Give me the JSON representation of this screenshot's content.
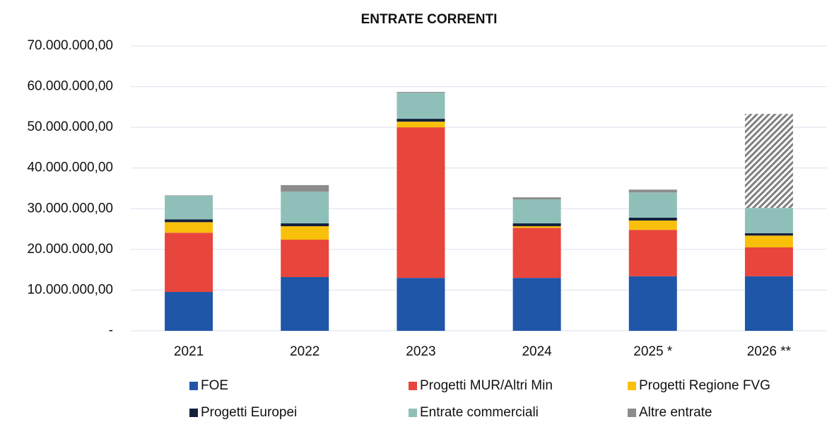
{
  "chart_data": {
    "type": "stacked_bar",
    "title": "ENTRATE CORRENTI",
    "categories": [
      "2021",
      "2022",
      "2023",
      "2024",
      "2025 *",
      "2026 **"
    ],
    "series": [
      {
        "name": "FOE",
        "color": "#1f56a8",
        "values": [
          9550000,
          13200000,
          13000000,
          13000000,
          13400000,
          13400000
        ]
      },
      {
        "name": "Progetti MUR/Altri Min",
        "color": "#e8453c",
        "values": [
          14550000,
          9200000,
          37000000,
          12300000,
          11400000,
          7100000
        ]
      },
      {
        "name": "Progetti Regione FVG",
        "color": "#f9c00b",
        "values": [
          2600000,
          3300000,
          1400000,
          400000,
          2300000,
          2900000
        ]
      },
      {
        "name": "Progetti Europei",
        "color": "#14213d",
        "values": [
          700000,
          700000,
          700000,
          700000,
          700000,
          600000
        ]
      },
      {
        "name": "Entrate commerciali",
        "color": "#8fbfb9",
        "values": [
          5800000,
          7800000,
          6400000,
          5900000,
          6200000,
          6200000
        ]
      },
      {
        "name": "Altre entrate",
        "color": "#8c8c8c",
        "values": [
          100000,
          1600000,
          200000,
          500000,
          700000,
          23100000
        ],
        "patterns": [
          null,
          null,
          null,
          null,
          null,
          "hatch"
        ]
      }
    ],
    "ylim": [
      0,
      70000000
    ],
    "yticks": [
      {
        "value": 0,
        "label": "-"
      },
      {
        "value": 10000000,
        "label": "10.000.000,00"
      },
      {
        "value": 20000000,
        "label": "20.000.000,00"
      },
      {
        "value": 30000000,
        "label": "30.000.000,00"
      },
      {
        "value": 40000000,
        "label": "40.000.000,00"
      },
      {
        "value": 50000000,
        "label": "50.000.000,00"
      },
      {
        "value": 60000000,
        "label": "60.000.000,00"
      },
      {
        "value": 70000000,
        "label": "70.000.000,00"
      }
    ],
    "grid": true,
    "legend": "bottom"
  }
}
